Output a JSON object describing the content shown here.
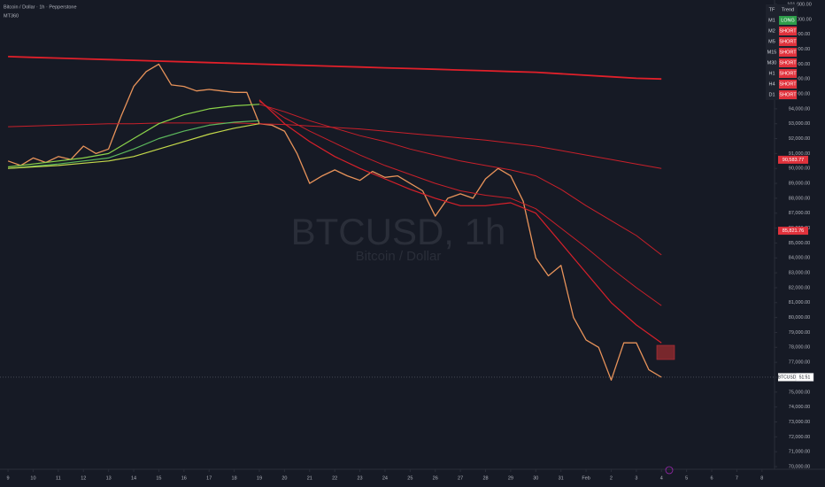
{
  "header": {
    "title": "Bitcoin / Dollar · 1h · Pepperstone",
    "indicator": "MT360"
  },
  "watermark": {
    "symbol": "BTCUSD, 1h",
    "name": "Bitcoin / Dollar"
  },
  "trend_table": {
    "headers": [
      "TF",
      "Trend"
    ],
    "rows": [
      {
        "tf": "M1",
        "trend": "LONG",
        "color": "#2e9d4a"
      },
      {
        "tf": "M2",
        "trend": "SHORT",
        "color": "#e0323c"
      },
      {
        "tf": "M5",
        "trend": "SHORT",
        "color": "#e0323c"
      },
      {
        "tf": "M15",
        "trend": "SHORT",
        "color": "#e0323c"
      },
      {
        "tf": "M30",
        "trend": "SHORT",
        "color": "#e0323c"
      },
      {
        "tf": "H1",
        "trend": "SHORT",
        "color": "#e0323c"
      },
      {
        "tf": "H4",
        "trend": "SHORT",
        "color": "#e0323c"
      },
      {
        "tf": "D1",
        "trend": "SHORT",
        "color": "#e0323c"
      }
    ]
  },
  "chart_data": {
    "type": "line",
    "xlim": [
      8.68,
      39.5
    ],
    "ylim": [
      69822,
      101297
    ],
    "xticks": [
      9,
      10,
      11,
      12,
      13,
      14,
      15,
      16,
      17,
      18,
      19,
      20,
      21,
      22,
      23,
      24,
      25,
      26,
      27,
      28,
      29,
      30,
      31,
      {
        "value": 32,
        "label": "Feb"
      },
      {
        "value": 33,
        "label": "2"
      },
      {
        "value": 34,
        "label": "3"
      },
      {
        "value": 35,
        "label": "4"
      },
      {
        "value": 36,
        "label": "5"
      },
      {
        "value": 37,
        "label": "6"
      },
      {
        "value": 38,
        "label": "7"
      },
      {
        "value": 39,
        "label": "8"
      },
      {
        "value": 40,
        "label": "9"
      }
    ],
    "yticks": [
      {
        "value": 70000,
        "label": "70,000.00"
      },
      {
        "value": 71000,
        "label": "71,000.00"
      },
      {
        "value": 72000,
        "label": "72,000.00"
      },
      {
        "value": 73000,
        "label": "73,000.00"
      },
      {
        "value": 74000,
        "label": "74,000.00"
      },
      {
        "value": 75000,
        "label": "75,000.00"
      },
      {
        "value": 76000,
        "label": "76,000.00"
      },
      {
        "value": 77000,
        "label": "77,000.00"
      },
      {
        "value": 78000,
        "label": "78,000.00"
      },
      {
        "value": 79000,
        "label": "79,000.00"
      },
      {
        "value": 80000,
        "label": "80,000.00"
      },
      {
        "value": 81000,
        "label": "81,000.00"
      },
      {
        "value": 82000,
        "label": "82,000.00"
      },
      {
        "value": 83000,
        "label": "83,000.00"
      },
      {
        "value": 84000,
        "label": "84,000.00"
      },
      {
        "value": 85000,
        "label": "85,000.00"
      },
      {
        "value": 86000,
        "label": "86,000.00"
      },
      {
        "value": 87000,
        "label": "87,000.00"
      },
      {
        "value": 88000,
        "label": "88,000.00"
      },
      {
        "value": 89000,
        "label": "89,000.00"
      },
      {
        "value": 90000,
        "label": "90,000.00"
      },
      {
        "value": 91000,
        "label": "91,000.00"
      },
      {
        "value": 92000,
        "label": "92,000.00"
      },
      {
        "value": 93000,
        "label": "93,000.00"
      },
      {
        "value": 94000,
        "label": "94,000.00"
      },
      {
        "value": 95000,
        "label": "95,000.00"
      },
      {
        "value": 96000,
        "label": "96,000.00"
      },
      {
        "value": 97000,
        "label": "97,000.00"
      },
      {
        "value": 98000,
        "label": "98,000.00"
      },
      {
        "value": 99000,
        "label": "99,000.00"
      },
      {
        "value": 100000,
        "label": "100,000.00"
      },
      {
        "value": 101000,
        "label": "101,000.00"
      }
    ],
    "series": [
      {
        "color": "#e8935a",
        "width": 1.3,
        "x": [
          9,
          9.5,
          10,
          10.5,
          11,
          11.5,
          12,
          12.5,
          13,
          13.5,
          14,
          14.5,
          15,
          15.5,
          16,
          16.5,
          17,
          17.5,
          18,
          18.5,
          19,
          19.5,
          20,
          20.5,
          21,
          21.5,
          22,
          22.5,
          23,
          23.5,
          24,
          24.5,
          25,
          25.5,
          26,
          26.5,
          27,
          27.5,
          28,
          28.5,
          29,
          29.5,
          30,
          30.5,
          31,
          31.5,
          32,
          32.5,
          33,
          33.5,
          34,
          34.5,
          35
        ],
        "values": [
          90500,
          90200,
          90700,
          90400,
          90800,
          90600,
          91500,
          91000,
          91300,
          93500,
          95500,
          96500,
          97000,
          95600,
          95500,
          95200,
          95300,
          95200,
          95100,
          95100,
          93000,
          92900,
          92500,
          91000,
          89000,
          89500,
          89900,
          89500,
          89200,
          89800,
          89400,
          89500,
          89000,
          88500,
          86800,
          88000,
          88300,
          88000,
          89300,
          90000,
          89500,
          87800,
          84000,
          82800,
          83500,
          80000,
          78500,
          78000,
          75800,
          78300,
          78300,
          76500,
          76000
        ]
      },
      {
        "color": "#e0202a",
        "width": 1.8,
        "x": [
          9,
          10,
          11,
          12,
          13,
          14,
          15,
          16,
          17,
          18,
          19,
          20,
          21,
          22,
          23,
          24,
          25,
          26,
          27,
          28,
          29,
          30,
          31,
          32,
          33,
          34,
          35
        ],
        "values": [
          97500,
          97450,
          97400,
          97350,
          97300,
          97250,
          97200,
          97150,
          97100,
          97050,
          97000,
          96950,
          96900,
          96850,
          96800,
          96750,
          96700,
          96650,
          96600,
          96550,
          96500,
          96450,
          96350,
          96250,
          96150,
          96050,
          96000
        ]
      },
      {
        "color": "#c8202a",
        "width": 1,
        "x": [
          9,
          10,
          11,
          12,
          13,
          14,
          15,
          16,
          17,
          18,
          19,
          20,
          21,
          22,
          23,
          24,
          25,
          26,
          27,
          28,
          29,
          30,
          31,
          32,
          33,
          34,
          35
        ],
        "values": [
          92800,
          92850,
          92900,
          92950,
          93000,
          93000,
          93050,
          93050,
          93050,
          93050,
          93000,
          92950,
          92850,
          92750,
          92650,
          92500,
          92350,
          92200,
          92050,
          91900,
          91700,
          91500,
          91200,
          90900,
          90600,
          90300,
          90000
        ]
      },
      {
        "color": "#c8202a",
        "width": 1,
        "x": [
          19,
          20,
          21,
          22,
          23,
          24,
          25,
          26,
          27,
          28,
          29,
          30,
          31,
          32,
          33,
          34,
          35
        ],
        "values": [
          94300,
          93800,
          93200,
          92700,
          92200,
          91800,
          91300,
          90900,
          90500,
          90200,
          89900,
          89500,
          88600,
          87500,
          86500,
          85500,
          84200
        ]
      },
      {
        "color": "#c8202a",
        "width": 1,
        "x": [
          19,
          20,
          21,
          22,
          23,
          24,
          25,
          26,
          27,
          28,
          29,
          30,
          31,
          32,
          33,
          34,
          35
        ],
        "values": [
          94500,
          93400,
          92500,
          91700,
          90900,
          90200,
          89600,
          89000,
          88500,
          88200,
          88000,
          87300,
          86000,
          84700,
          83300,
          82000,
          80800
        ]
      },
      {
        "color": "#d8202a",
        "width": 1.2,
        "x": [
          19,
          20,
          21,
          22,
          23,
          24,
          25,
          26,
          27,
          28,
          29,
          30,
          31,
          32,
          33,
          34,
          35
        ],
        "values": [
          94600,
          93000,
          91800,
          90800,
          90000,
          89300,
          88600,
          88000,
          87500,
          87500,
          87700,
          87000,
          85000,
          83000,
          81000,
          79500,
          78300
        ]
      },
      {
        "color": "#8bd44a",
        "width": 1.2,
        "x": [
          9,
          10,
          11,
          12,
          13,
          14,
          15,
          16,
          17,
          18,
          19
        ],
        "values": [
          90100,
          90300,
          90500,
          90700,
          91000,
          92000,
          93000,
          93600,
          94000,
          94200,
          94300
        ]
      },
      {
        "color": "#5cb85c",
        "width": 1.2,
        "x": [
          9,
          10,
          11,
          12,
          13,
          14,
          15,
          16,
          17,
          18,
          19
        ],
        "values": [
          90000,
          90150,
          90300,
          90500,
          90700,
          91300,
          92000,
          92500,
          92900,
          93100,
          93200
        ]
      },
      {
        "color": "#c4d94a",
        "width": 1.2,
        "x": [
          9,
          10,
          11,
          12,
          13,
          14,
          15,
          16,
          17,
          18,
          19
        ],
        "values": [
          90000,
          90100,
          90200,
          90350,
          90500,
          90800,
          91300,
          91800,
          92300,
          92700,
          93000
        ]
      }
    ],
    "ma_labels": [
      {
        "value": 90583.77,
        "label": "90,583.77"
      },
      {
        "value": 85821.76,
        "label": "85,821.76"
      }
    ],
    "price_line": {
      "symbol": "BTCUSD",
      "value": 76000,
      "countdown": "51:51"
    }
  }
}
